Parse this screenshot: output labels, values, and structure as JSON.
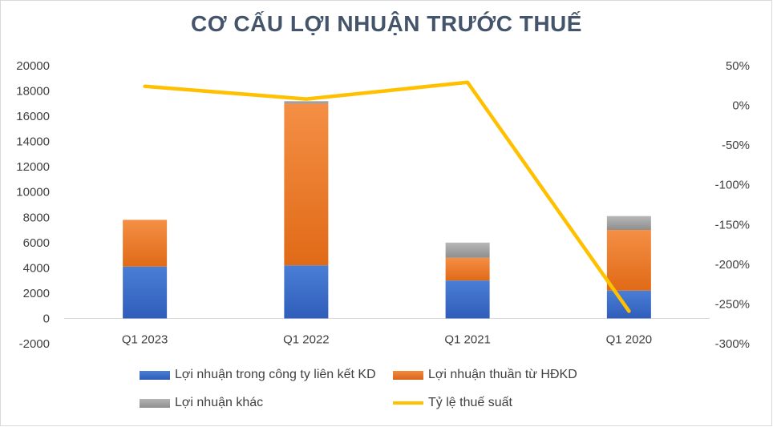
{
  "chart_data": {
    "type": "bar",
    "title": "CƠ CẤU LỢI NHUẬN TRƯỚC THUẾ",
    "categories": [
      "Q1 2023",
      "Q1 2022",
      "Q1 2021",
      "Q1 2020"
    ],
    "series": [
      {
        "name": "Lợi nhuận trong công ty liên kết KD",
        "type": "stacked-bar",
        "axis": "left",
        "color": "#4472c4",
        "values": [
          4100,
          4200,
          3000,
          2200
        ]
      },
      {
        "name": "Lợi nhuận thuần từ HĐKD",
        "type": "stacked-bar",
        "axis": "left",
        "color": "#ed7d31",
        "values": [
          3700,
          12800,
          1800,
          4800
        ]
      },
      {
        "name": "Lợi nhuận khác",
        "type": "stacked-bar",
        "axis": "left",
        "color": "#a5a5a5",
        "values": [
          0,
          200,
          1200,
          1100
        ]
      },
      {
        "name": "Tỷ lệ thuế suất",
        "type": "line",
        "axis": "right",
        "color": "#ffc000",
        "values": [
          24,
          8,
          29,
          -259
        ]
      }
    ],
    "y_left": {
      "min": -2000,
      "max": 20000,
      "step": 2000,
      "ticks": [
        "20000",
        "18000",
        "16000",
        "14000",
        "12000",
        "10000",
        "8000",
        "6000",
        "4000",
        "2000",
        "0",
        "-2000"
      ]
    },
    "y_right": {
      "min": -300,
      "max": 50,
      "step": 50,
      "ticks": [
        "50%",
        "0%",
        "-50%",
        "-100%",
        "-150%",
        "-200%",
        "-250%",
        "-300%"
      ]
    },
    "grid": false,
    "legend_position": "bottom"
  }
}
